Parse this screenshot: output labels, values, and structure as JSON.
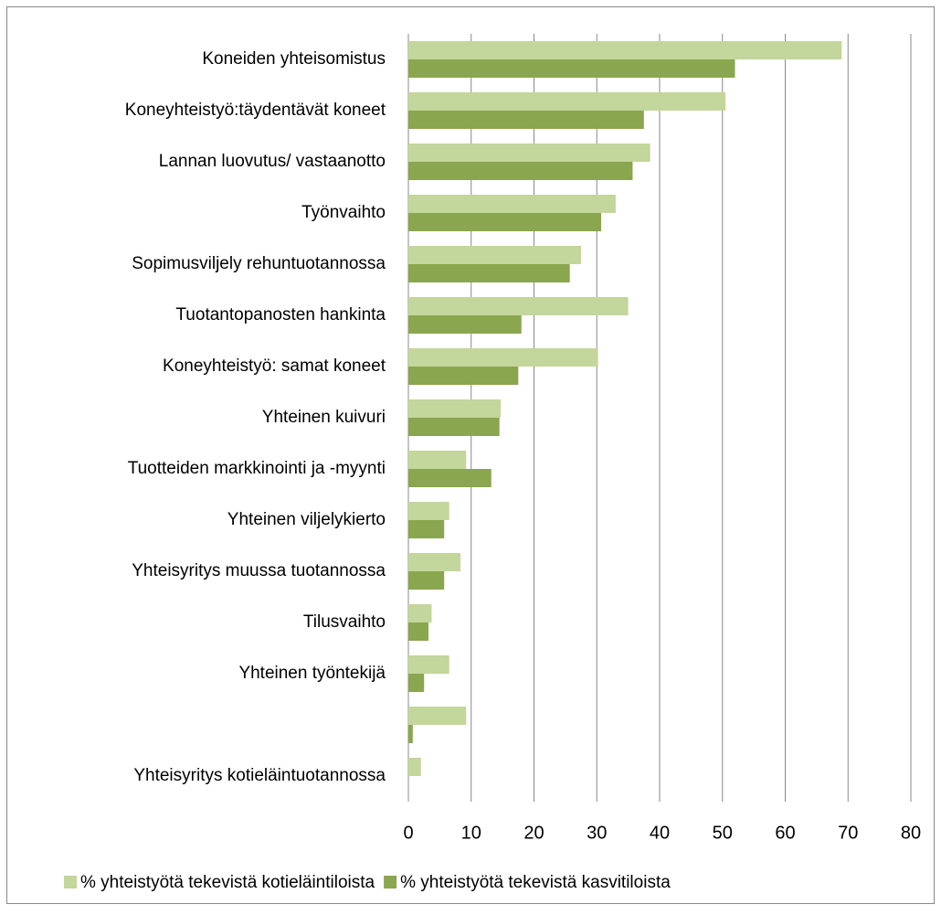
{
  "chart_data": {
    "type": "hbar",
    "categories": [
      "Koneiden yhteisomistus",
      "Koneyhteistyö:täydentävät koneet",
      "Lannan luovutus/ vastaanotto",
      "Työnvaihto",
      "Sopimusviljely rehuntuotannossa",
      "Tuotantopanosten hankinta",
      "Koneyhteistyö: samat koneet",
      "Yhteinen kuivuri",
      "Tuotteiden markkinointi ja -myynti",
      "Yhteinen viljelykierto",
      "Yhteisyritys muussa tuotannossa",
      "Tilusvaihto",
      "Yhteinen työntekijä",
      null,
      "Yhteisyritys kotieläintuotannossa"
    ],
    "series": [
      {
        "name": "% yhteistyötä tekevistä kotieläintiloista",
        "color": "#c3d69b",
        "values": [
          69,
          50.5,
          38.5,
          33,
          27.5,
          35,
          30.2,
          14.7,
          9.2,
          6.5,
          8.3,
          3.7,
          6.5,
          9.2,
          2
        ]
      },
      {
        "name": "% yhteistyötä tekevistä kasvitiloista",
        "color": "#8aa64e",
        "values": [
          52,
          37.5,
          35.7,
          30.7,
          25.7,
          18,
          17.5,
          14.5,
          13.2,
          5.7,
          5.7,
          3.2,
          2.5,
          0.7,
          0
        ]
      }
    ],
    "xlim": [
      0,
      80
    ],
    "xticks": [
      0,
      10,
      20,
      30,
      40,
      50,
      60,
      70,
      80
    ],
    "grid": true,
    "legend": "bottom"
  }
}
